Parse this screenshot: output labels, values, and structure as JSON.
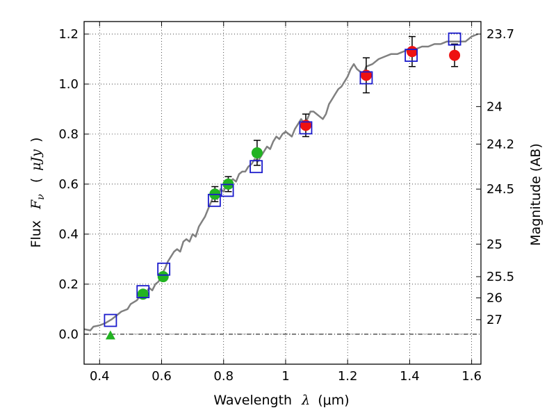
{
  "chart_data": {
    "type": "scatter",
    "xlabel": {
      "text": "Wavelength",
      "symbol": "λ",
      "unit_open": "(",
      "unit": "μm",
      "unit_close": ")"
    },
    "ylabel": {
      "text": "Flux",
      "symbol": "F",
      "subscript": "ν",
      "unit_open": "(",
      "unit": "μJy",
      "unit_close": ")"
    },
    "y2label": "Magnitude (AB)",
    "xlim": [
      0.35,
      1.63
    ],
    "ylim": [
      -0.12,
      1.25
    ],
    "x_ticks": [
      0.4,
      0.6,
      0.8,
      1.0,
      1.2,
      1.4,
      1.6
    ],
    "x_tick_labels": [
      "0.4",
      "0.6",
      "0.8",
      "1",
      "1.2",
      "1.4",
      "1.6"
    ],
    "y_ticks": [
      0.0,
      0.2,
      0.4,
      0.6,
      0.8,
      1.0,
      1.2
    ],
    "y_tick_labels": [
      "0.0",
      "0.2",
      "0.4",
      "0.6",
      "0.8",
      "1.0",
      "1.2"
    ],
    "y2_ticks": [
      {
        "label": "23.7",
        "flux": 1.2
      },
      {
        "label": "24",
        "flux": 0.91
      },
      {
        "label": "24.2",
        "flux": 0.76
      },
      {
        "label": "24.5",
        "flux": 0.58
      },
      {
        "label": "25",
        "flux": 0.36
      },
      {
        "label": "25.5",
        "flux": 0.23
      },
      {
        "label": "26",
        "flux": 0.145
      },
      {
        "label": "27",
        "flux": 0.058
      }
    ],
    "grid": true,
    "zero_line": true,
    "colors": {
      "model": "#808080",
      "green": "#22b322",
      "red": "#ee1111",
      "box": "#1a1acc",
      "error": "#000000"
    },
    "model_spectrum": {
      "x": [
        0.35,
        0.37,
        0.38,
        0.4,
        0.42,
        0.44,
        0.45,
        0.47,
        0.49,
        0.5,
        0.52,
        0.535,
        0.55,
        0.56,
        0.57,
        0.58,
        0.59,
        0.6,
        0.61,
        0.62,
        0.63,
        0.64,
        0.65,
        0.66,
        0.67,
        0.68,
        0.69,
        0.7,
        0.71,
        0.72,
        0.73,
        0.74,
        0.75,
        0.76,
        0.77,
        0.78,
        0.79,
        0.8,
        0.81,
        0.82,
        0.83,
        0.84,
        0.85,
        0.86,
        0.87,
        0.88,
        0.89,
        0.9,
        0.91,
        0.92,
        0.93,
        0.94,
        0.95,
        0.96,
        0.97,
        0.98,
        0.99,
        1.0,
        1.01,
        1.02,
        1.03,
        1.04,
        1.05,
        1.06,
        1.07,
        1.08,
        1.09,
        1.1,
        1.11,
        1.12,
        1.13,
        1.14,
        1.15,
        1.16,
        1.17,
        1.18,
        1.2,
        1.21,
        1.22,
        1.23,
        1.24,
        1.25,
        1.26,
        1.28,
        1.3,
        1.32,
        1.34,
        1.36,
        1.38,
        1.4,
        1.42,
        1.44,
        1.46,
        1.48,
        1.5,
        1.52,
        1.54,
        1.56,
        1.58,
        1.6,
        1.62
      ],
      "y": [
        0.02,
        0.015,
        0.03,
        0.035,
        0.045,
        0.06,
        0.07,
        0.09,
        0.1,
        0.12,
        0.135,
        0.16,
        0.165,
        0.185,
        0.175,
        0.2,
        0.21,
        0.24,
        0.26,
        0.29,
        0.31,
        0.33,
        0.34,
        0.33,
        0.37,
        0.38,
        0.37,
        0.4,
        0.39,
        0.43,
        0.45,
        0.47,
        0.5,
        0.53,
        0.56,
        0.54,
        0.58,
        0.57,
        0.6,
        0.61,
        0.62,
        0.61,
        0.64,
        0.65,
        0.65,
        0.67,
        0.68,
        0.7,
        0.69,
        0.71,
        0.73,
        0.75,
        0.74,
        0.77,
        0.79,
        0.78,
        0.8,
        0.81,
        0.8,
        0.79,
        0.82,
        0.84,
        0.86,
        0.84,
        0.86,
        0.89,
        0.89,
        0.88,
        0.87,
        0.86,
        0.88,
        0.92,
        0.94,
        0.96,
        0.98,
        0.99,
        1.03,
        1.06,
        1.08,
        1.06,
        1.05,
        1.04,
        1.07,
        1.08,
        1.1,
        1.11,
        1.12,
        1.12,
        1.13,
        1.14,
        1.14,
        1.15,
        1.15,
        1.16,
        1.16,
        1.17,
        1.17,
        1.17,
        1.17,
        1.19,
        1.2
      ]
    },
    "green_points": [
      {
        "x": 0.54,
        "y": 0.16,
        "err": 0.015
      },
      {
        "x": 0.605,
        "y": 0.23,
        "err": 0.015
      },
      {
        "x": 0.772,
        "y": 0.56,
        "err": 0.03
      },
      {
        "x": 0.815,
        "y": 0.6,
        "err": 0.03
      },
      {
        "x": 0.908,
        "y": 0.725,
        "err": 0.05
      }
    ],
    "green_upper_limit": {
      "x": 0.435,
      "y": -0.01
    },
    "red_points": [
      {
        "x": 1.065,
        "y": 0.835,
        "err": 0.045
      },
      {
        "x": 1.26,
        "y": 1.035,
        "err": 0.07
      },
      {
        "x": 1.408,
        "y": 1.13,
        "err": 0.06
      },
      {
        "x": 1.545,
        "y": 1.115,
        "err": 0.045
      }
    ],
    "model_boxes": [
      {
        "x": 0.435,
        "y": 0.055
      },
      {
        "x": 0.54,
        "y": 0.17
      },
      {
        "x": 0.607,
        "y": 0.26
      },
      {
        "x": 0.77,
        "y": 0.535
      },
      {
        "x": 0.812,
        "y": 0.575
      },
      {
        "x": 0.905,
        "y": 0.67
      },
      {
        "x": 1.065,
        "y": 0.825
      },
      {
        "x": 1.26,
        "y": 1.025
      },
      {
        "x": 1.405,
        "y": 1.115
      },
      {
        "x": 1.545,
        "y": 1.18
      }
    ]
  }
}
